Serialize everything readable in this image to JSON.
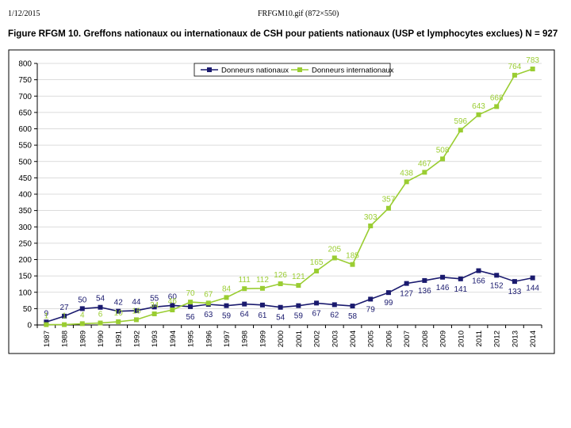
{
  "page_header": {
    "date": "1/12/2015",
    "file": "FRFGM10.gif (872×550)"
  },
  "figure_title": "Figure RFGM 10. Greffons nationaux ou internationaux de CSH pour patients nationaux (USP et lymphocytes exclues) N = 927",
  "chart_data": {
    "type": "line",
    "title": "",
    "xlabel": "",
    "ylabel": "",
    "ylim": [
      0,
      800
    ],
    "yticks": [
      0,
      50,
      100,
      150,
      200,
      250,
      300,
      350,
      400,
      450,
      500,
      550,
      600,
      650,
      700,
      750,
      800
    ],
    "grid": true,
    "legend_position": "top-right",
    "categories": [
      "1987",
      "1988",
      "1989",
      "1990",
      "1991",
      "1992",
      "1993",
      "1994",
      "1995",
      "1996",
      "1997",
      "1998",
      "1999",
      "2000",
      "2001",
      "2002",
      "2003",
      "2004",
      "2005",
      "2006",
      "2007",
      "2008",
      "2009",
      "2010",
      "2011",
      "2012",
      "2013",
      "2014"
    ],
    "series": [
      {
        "name": "Donneurs nationaux",
        "color": "#1a1a6e",
        "marker": "square",
        "values": [
          9,
          27,
          50,
          54,
          42,
          44,
          55,
          60,
          56,
          63,
          59,
          64,
          61,
          54,
          59,
          67,
          62,
          58,
          79,
          99,
          127,
          136,
          146,
          141,
          166,
          152,
          133,
          144
        ]
      },
      {
        "name": "Donneurs internationaux",
        "color": "#9acd32",
        "marker": "square",
        "values": [
          1,
          1,
          4,
          6,
          10,
          16,
          34,
          46,
          70,
          67,
          84,
          111,
          112,
          126,
          121,
          165,
          205,
          185,
          303,
          357,
          438,
          467,
          508,
          596,
          643,
          668,
          764,
          783
        ]
      }
    ]
  }
}
